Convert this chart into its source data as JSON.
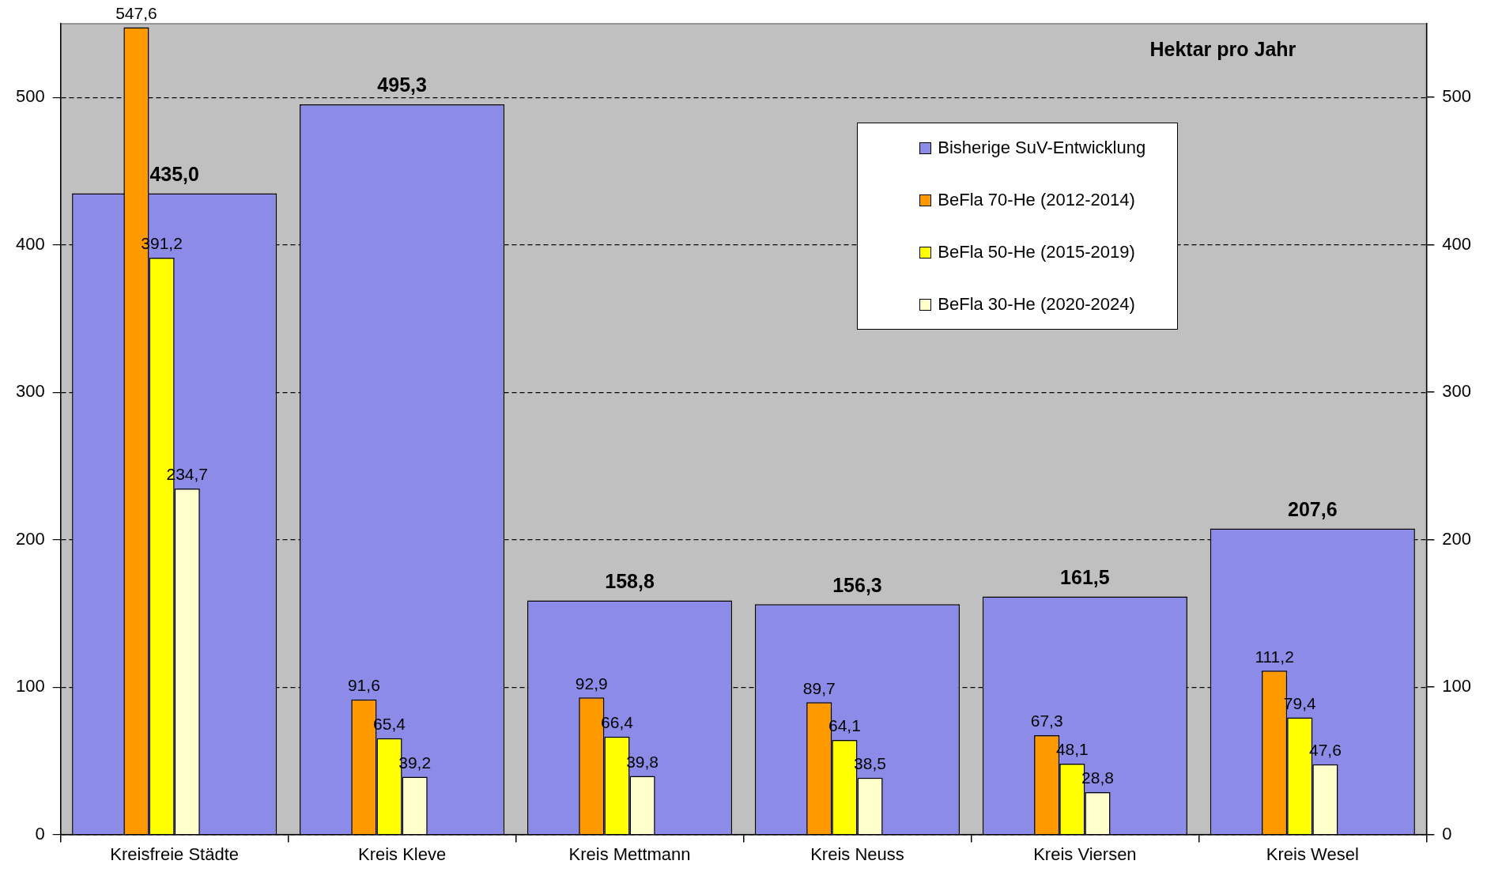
{
  "chart_data": {
    "type": "bar",
    "categories": [
      "Kreisfreie Städte",
      "Kreis Kleve",
      "Kreis Mettmann",
      "Kreis Neuss",
      "Kreis Viersen",
      "Kreis Wesel"
    ],
    "series": [
      {
        "name": "Bisherige SuV-Entwicklung",
        "color": "#8c8ce8",
        "values": [
          435.0,
          495.3,
          158.8,
          156.3,
          161.5,
          207.6
        ],
        "value_labels": [
          "435,0",
          "495,3",
          "158,8",
          "156,3",
          "161,5",
          "207,6"
        ]
      },
      {
        "name": "BeFla 70-He (2012-2014)",
        "color": "#ff9900",
        "values": [
          547.6,
          91.6,
          92.9,
          89.7,
          67.3,
          111.2
        ],
        "value_labels": [
          "547,6",
          "91,6",
          "92,9",
          "89,7",
          "67,3",
          "111,2"
        ]
      },
      {
        "name": "BeFla 50-He (2015-2019)",
        "color": "#ffff00",
        "values": [
          391.2,
          65.4,
          66.4,
          64.1,
          48.1,
          79.4
        ],
        "value_labels": [
          "391,2",
          "65,4",
          "66,4",
          "64,1",
          "48,1",
          "79,4"
        ]
      },
      {
        "name": "BeFla 30-He (2020-2024)",
        "color": "#ffffcc",
        "values": [
          234.7,
          39.2,
          39.8,
          38.5,
          28.8,
          47.6
        ],
        "value_labels": [
          "234,7",
          "39,2",
          "39,8",
          "38,5",
          "28,8",
          "47,6"
        ]
      }
    ],
    "ylim": [
      0,
      550
    ],
    "yticks": [
      0,
      100,
      200,
      300,
      400,
      500
    ],
    "y2lim": [
      0,
      550
    ],
    "y2ticks": [
      0,
      100,
      200,
      300,
      400,
      500
    ],
    "grid": "y",
    "legend": "top right",
    "annotations": [
      "Hektar pro Jahr"
    ]
  }
}
